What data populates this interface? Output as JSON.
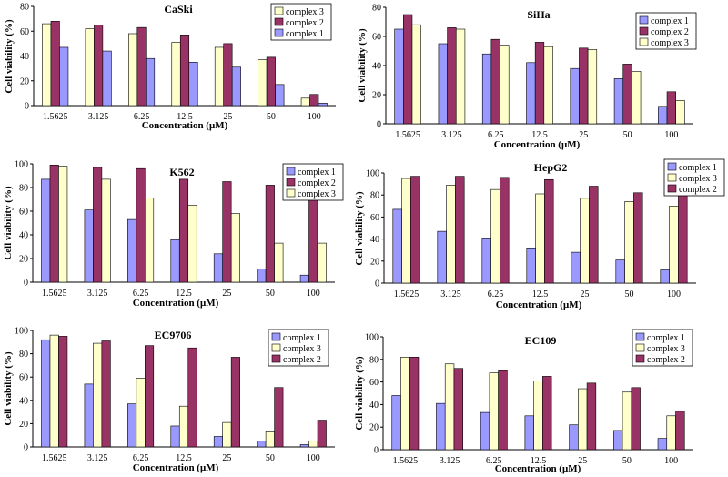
{
  "colors": {
    "complex 1": "#9999ff",
    "complex 2": "#993366",
    "complex 3": "#ffffcc"
  },
  "chart_data": [
    {
      "type": "bar",
      "title": "CaSki",
      "categories": [
        "1.5625",
        "3.125",
        "6.25",
        "12.5",
        "25",
        "50",
        "100"
      ],
      "xlabel": "Concentration (μM)",
      "ylabel": "Cell viability (%)",
      "ylim": [
        0,
        80
      ],
      "yticks": [
        "0",
        "20",
        "40",
        "60",
        "80"
      ],
      "legend": "top-right",
      "series": [
        {
          "name": "complex 3",
          "values": [
            66,
            62,
            58,
            51,
            47,
            37,
            6
          ]
        },
        {
          "name": "complex 2",
          "values": [
            68,
            65,
            63,
            57,
            50,
            39,
            9
          ]
        },
        {
          "name": "complex 1",
          "values": [
            47,
            44,
            38,
            35,
            31,
            17,
            2
          ]
        }
      ]
    },
    {
      "type": "bar",
      "title": "SiHa",
      "categories": [
        "1.5625",
        "3.125",
        "6.25",
        "12.5",
        "25",
        "50",
        "100"
      ],
      "xlabel": "Concentration (μM)",
      "ylabel": "Cell viability (%)",
      "ylim": [
        0,
        80
      ],
      "yticks": [
        "0",
        "20",
        "40",
        "60",
        "80"
      ],
      "legend": "top-right",
      "series": [
        {
          "name": "complex 1",
          "values": [
            65,
            55,
            48,
            42,
            38,
            31,
            12
          ]
        },
        {
          "name": "complex 2",
          "values": [
            75,
            66,
            58,
            56,
            52,
            41,
            22
          ]
        },
        {
          "name": "complex 3",
          "values": [
            68,
            65,
            54,
            53,
            51,
            36,
            16
          ]
        }
      ]
    },
    {
      "type": "bar",
      "title": "K562",
      "categories": [
        "1.5625",
        "3.125",
        "6.25",
        "12.5",
        "25",
        "50",
        "100"
      ],
      "xlabel": "Concentration (μM)",
      "ylabel": "Cell viability (%)",
      "ylim": [
        0,
        100
      ],
      "yticks": [
        "0",
        "20",
        "40",
        "60",
        "80",
        "100"
      ],
      "legend": "top-right",
      "series": [
        {
          "name": "complex 1",
          "values": [
            87,
            61,
            53,
            36,
            24,
            11,
            6
          ]
        },
        {
          "name": "complex 2",
          "values": [
            99,
            97,
            96,
            87,
            85,
            82,
            75
          ]
        },
        {
          "name": "complex 3",
          "values": [
            98,
            87,
            71,
            65,
            58,
            33,
            33
          ]
        }
      ]
    },
    {
      "type": "bar",
      "title": "HepG2",
      "categories": [
        "1.5625",
        "3.125",
        "6.25",
        "12.5",
        "25",
        "50",
        "100"
      ],
      "xlabel": "Concentration (μM)",
      "ylabel": "Cell viability (%)",
      "ylim": [
        0,
        100
      ],
      "yticks": [
        "0",
        "20",
        "40",
        "60",
        "80",
        "100"
      ],
      "legend": "top-right",
      "series": [
        {
          "name": "complex 1",
          "values": [
            67,
            47,
            41,
            32,
            28,
            21,
            12
          ]
        },
        {
          "name": "complex 3",
          "values": [
            95,
            89,
            85,
            81,
            77,
            74,
            70
          ]
        },
        {
          "name": "complex 2",
          "values": [
            97,
            97,
            96,
            94,
            88,
            82,
            80
          ]
        }
      ]
    },
    {
      "type": "bar",
      "title": "EC9706",
      "categories": [
        "1.5625",
        "3.125",
        "6.25",
        "12.5",
        "25",
        "50",
        "100"
      ],
      "xlabel": "Concentration (μM)",
      "ylabel": "Cell viability (%)",
      "ylim": [
        0,
        100
      ],
      "yticks": [
        "0",
        "20",
        "40",
        "60",
        "80",
        "100"
      ],
      "legend": "top-right",
      "series": [
        {
          "name": "complex 1",
          "values": [
            92,
            54,
            37,
            18,
            9,
            5,
            2
          ]
        },
        {
          "name": "complex 3",
          "values": [
            96,
            89,
            59,
            35,
            21,
            13,
            5
          ]
        },
        {
          "name": "complex 2",
          "values": [
            95,
            91,
            87,
            85,
            77,
            51,
            23
          ]
        }
      ]
    },
    {
      "type": "bar",
      "title": "EC109",
      "categories": [
        "1.5625",
        "3.125",
        "6.25",
        "12.5",
        "25",
        "50",
        "100"
      ],
      "xlabel": "Concentration (μM)",
      "ylabel": "Cell viability (%)",
      "ylim": [
        0,
        100
      ],
      "yticks": [
        "0",
        "20",
        "40",
        "60",
        "80",
        "100"
      ],
      "legend": "top-right",
      "series": [
        {
          "name": "complex 1",
          "values": [
            48,
            41,
            33,
            30,
            22,
            17,
            10
          ]
        },
        {
          "name": "complex 3",
          "values": [
            82,
            76,
            68,
            61,
            54,
            51,
            30
          ]
        },
        {
          "name": "complex 2",
          "values": [
            82,
            72,
            70,
            65,
            59,
            55,
            34
          ]
        }
      ]
    }
  ]
}
